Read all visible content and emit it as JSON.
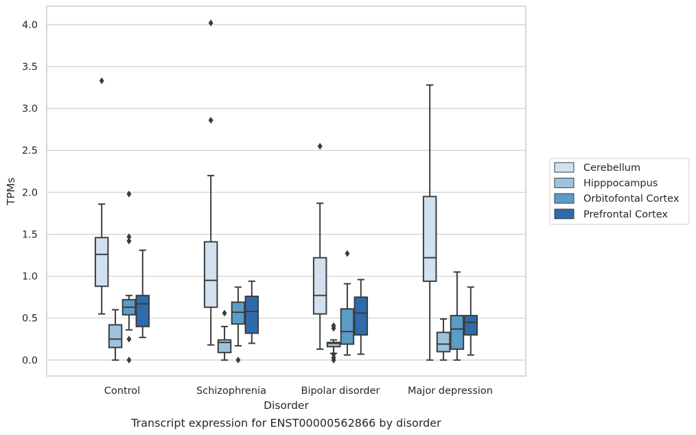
{
  "chart_data": {
    "type": "box",
    "title": "",
    "caption": "Transcript expression for ENST00000562866 by disorder",
    "xlabel": "Disorder",
    "ylabel": "TPMs",
    "ylim": [
      -0.19,
      4.22
    ],
    "yticks": [
      "0.0",
      "0.5",
      "1.0",
      "1.5",
      "2.0",
      "2.5",
      "3.0",
      "3.5",
      "4.0"
    ],
    "grid": true,
    "legend_position": "right",
    "categories": [
      "Control",
      "Schizophrenia",
      "Bipolar disorder",
      "Major depression"
    ],
    "series": [
      {
        "name": "Cerebellum",
        "color": "#d1e1f0",
        "boxes": [
          {
            "whislo": 0.55,
            "q1": 0.88,
            "med": 1.26,
            "q3": 1.46,
            "whishi": 1.86,
            "fliers": [
              3.33
            ]
          },
          {
            "whislo": 0.18,
            "q1": 0.63,
            "med": 0.95,
            "q3": 1.41,
            "whishi": 2.2,
            "fliers": [
              2.86,
              4.02
            ]
          },
          {
            "whislo": 0.13,
            "q1": 0.55,
            "med": 0.77,
            "q3": 1.22,
            "whishi": 1.87,
            "fliers": [
              2.55
            ]
          },
          {
            "whislo": 0.0,
            "q1": 0.94,
            "med": 1.22,
            "q3": 1.95,
            "whishi": 3.28,
            "fliers": []
          }
        ]
      },
      {
        "name": "Hipppocampus",
        "color": "#9dc4df",
        "boxes": [
          {
            "whislo": 0.0,
            "q1": 0.15,
            "med": 0.25,
            "q3": 0.42,
            "whishi": 0.6,
            "fliers": []
          },
          {
            "whislo": 0.0,
            "q1": 0.09,
            "med": 0.21,
            "q3": 0.24,
            "whishi": 0.4,
            "fliers": [
              0.56
            ]
          },
          {
            "whislo": 0.08,
            "q1": 0.16,
            "med": 0.2,
            "q3": 0.21,
            "whishi": 0.24,
            "fliers": [
              0.0,
              0.03,
              0.07,
              0.38,
              0.41
            ]
          },
          {
            "whislo": 0.0,
            "q1": 0.1,
            "med": 0.19,
            "q3": 0.33,
            "whishi": 0.49,
            "fliers": []
          }
        ]
      },
      {
        "name": "Orbitofontal Cortex",
        "color": "#5b9cc8",
        "boxes": [
          {
            "whislo": 0.36,
            "q1": 0.54,
            "med": 0.63,
            "q3": 0.72,
            "whishi": 0.77,
            "fliers": [
              0.0,
              0.25,
              1.42,
              1.47,
              1.98
            ]
          },
          {
            "whislo": 0.17,
            "q1": 0.43,
            "med": 0.57,
            "q3": 0.69,
            "whishi": 0.87,
            "fliers": [
              0.0
            ]
          },
          {
            "whislo": 0.06,
            "q1": 0.19,
            "med": 0.34,
            "q3": 0.61,
            "whishi": 0.91,
            "fliers": [
              1.27
            ]
          },
          {
            "whislo": 0.0,
            "q1": 0.13,
            "med": 0.37,
            "q3": 0.53,
            "whishi": 1.05,
            "fliers": []
          }
        ]
      },
      {
        "name": "Prefrontal Cortex",
        "color": "#2e6bac",
        "boxes": [
          {
            "whislo": 0.27,
            "q1": 0.4,
            "med": 0.67,
            "q3": 0.77,
            "whishi": 1.31,
            "fliers": []
          },
          {
            "whislo": 0.2,
            "q1": 0.32,
            "med": 0.58,
            "q3": 0.76,
            "whishi": 0.94,
            "fliers": []
          },
          {
            "whislo": 0.07,
            "q1": 0.3,
            "med": 0.56,
            "q3": 0.75,
            "whishi": 0.96,
            "fliers": []
          },
          {
            "whislo": 0.06,
            "q1": 0.3,
            "med": 0.45,
            "q3": 0.53,
            "whishi": 0.87,
            "fliers": []
          }
        ]
      }
    ]
  }
}
